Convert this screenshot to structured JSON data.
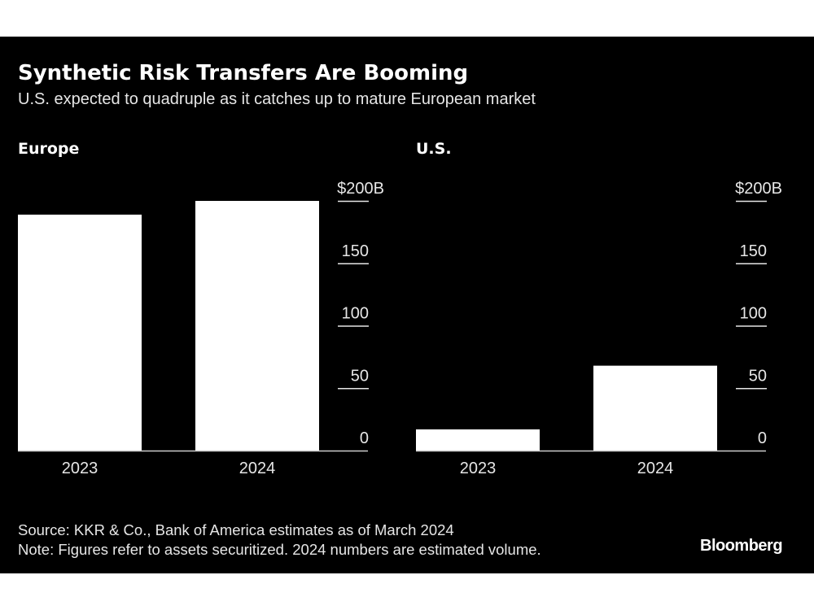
{
  "title": "Synthetic Risk Transfers Are Booming",
  "subtitle": "U.S. expected to quadruple as it catches up to mature European market",
  "source": "Source: KKR & Co., Bank of America estimates as of March 2024",
  "note": "Note: Figures refer to assets securitized. 2024 numbers are estimated volume.",
  "logo": "Bloomberg",
  "colors": {
    "background": "#000000",
    "bars": "#ffffff",
    "text": "#ffffff"
  },
  "chart_data": [
    {
      "type": "bar",
      "title": "Europe",
      "categories": [
        "2023",
        "2024"
      ],
      "values": [
        189,
        200
      ],
      "ylim": [
        0,
        200
      ],
      "yticks": [
        0,
        50,
        100,
        150,
        200
      ],
      "ytick_labels": [
        "0",
        "50",
        "100",
        "150",
        "$200B"
      ],
      "grid": false
    },
    {
      "type": "bar",
      "title": "U.S.",
      "categories": [
        "2023",
        "2024"
      ],
      "values": [
        17,
        68
      ],
      "ylim": [
        0,
        200
      ],
      "yticks": [
        0,
        50,
        100,
        150,
        200
      ],
      "ytick_labels": [
        "0",
        "50",
        "100",
        "150",
        "$200B"
      ],
      "grid": false
    }
  ]
}
